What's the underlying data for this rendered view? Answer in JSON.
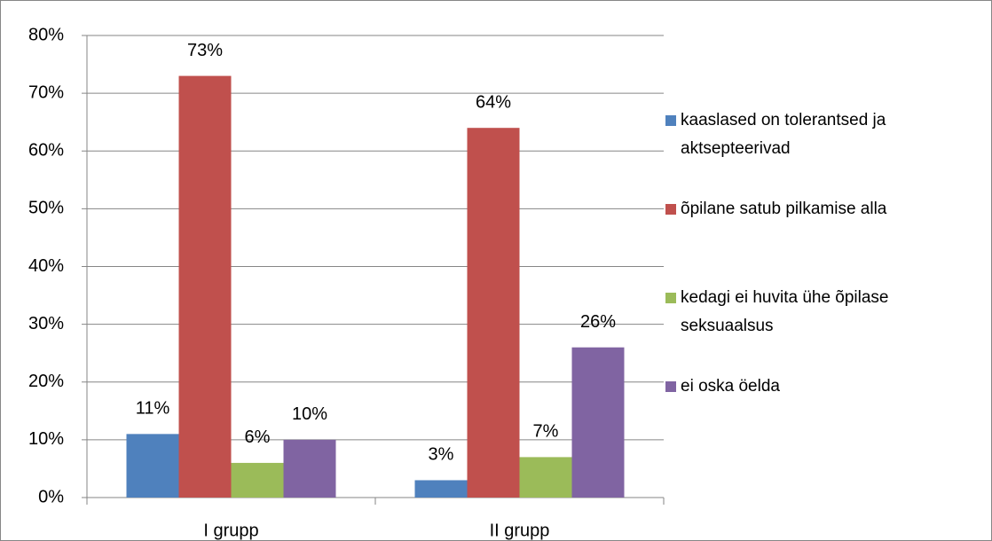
{
  "chart_data": {
    "type": "bar",
    "categories": [
      "I grupp",
      "II grupp"
    ],
    "series": [
      {
        "name": "kaaslased on tolerantsed ja aktsepteerivad",
        "color": "#4f81bd",
        "values": [
          11,
          3
        ],
        "value_labels": [
          "11%",
          "3%"
        ]
      },
      {
        "name": "õpilane satub pilkamise alla",
        "color": "#c0504d",
        "values": [
          73,
          64
        ],
        "value_labels": [
          "73%",
          "64%"
        ]
      },
      {
        "name": "kedagi ei huvita ühe õpilase seksuaalsus",
        "color": "#9bbb59",
        "values": [
          6,
          7
        ],
        "value_labels": [
          "6%",
          "7%"
        ]
      },
      {
        "name": "ei oska öelda",
        "color": "#8064a2",
        "values": [
          10,
          26
        ],
        "value_labels": [
          "10%",
          "26%"
        ]
      }
    ],
    "ylim": [
      0,
      80
    ],
    "yticks": [
      {
        "value": 0,
        "label": "0%"
      },
      {
        "value": 10,
        "label": "10%"
      },
      {
        "value": 20,
        "label": "20%"
      },
      {
        "value": 30,
        "label": "30%"
      },
      {
        "value": 40,
        "label": "40%"
      },
      {
        "value": 50,
        "label": "50%"
      },
      {
        "value": 60,
        "label": "60%"
      },
      {
        "value": 70,
        "label": "70%"
      },
      {
        "value": 80,
        "label": "80%"
      }
    ],
    "grid": true,
    "legend": "right"
  }
}
